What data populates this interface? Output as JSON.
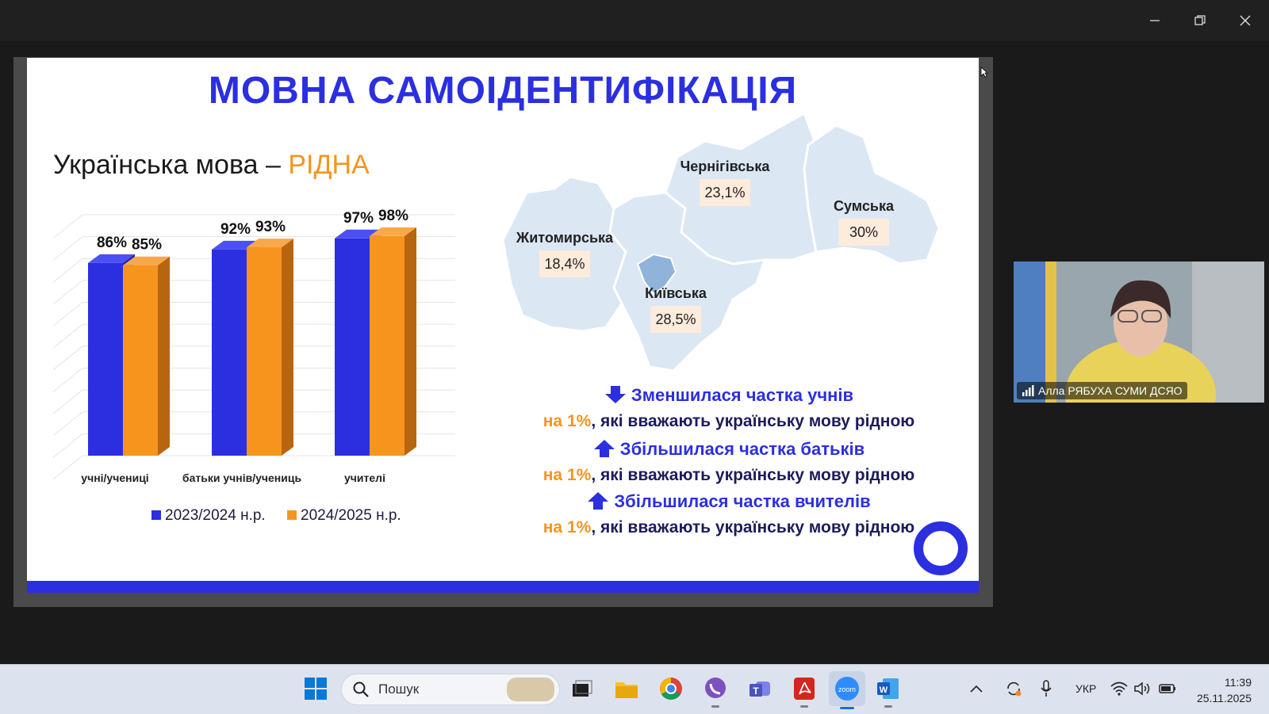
{
  "slide": {
    "title": "МОВНА САМОІДЕНТИФІКАЦІЯ",
    "subtitle_main": "Українська мова – ",
    "subtitle_highlight": "РІДНА",
    "colors": {
      "blue": "#2b2fe0",
      "orange": "#f7941d",
      "map": "#dbe7f3"
    }
  },
  "chart_data": {
    "type": "bar",
    "categories": [
      "учні/учениці",
      "батьки учнів/учениць",
      "учителі"
    ],
    "series": [
      {
        "name": "2023/2024 н.р.",
        "values": [
          86,
          92,
          97
        ],
        "labels": [
          "86%",
          "92%",
          "97%"
        ]
      },
      {
        "name": "2024/2025 н.р.",
        "values": [
          85,
          93,
          98
        ],
        "labels": [
          "85%",
          "93%",
          "98%"
        ]
      }
    ],
    "ylim": [
      0,
      100
    ],
    "legend": "bottom",
    "grid": true
  },
  "map": {
    "regions": [
      {
        "name": "Чернігівська",
        "value": "23,1%"
      },
      {
        "name": "Сумська",
        "value": "30%"
      },
      {
        "name": "Житомирська",
        "value": "18,4%"
      },
      {
        "name": "Київська",
        "value": "28,5%"
      }
    ]
  },
  "notes": [
    {
      "direction": "down",
      "headline": "Зменшилася частка учнів",
      "amount": "на 1%",
      "rest": ", які вважають українську мову рідною"
    },
    {
      "direction": "up",
      "headline": "Збільшилася частка батьків",
      "amount": "на 1%",
      "rest": ", які вважають українську мову рідною"
    },
    {
      "direction": "up",
      "headline": "Збільшилася частка вчителів",
      "amount": "на 1%",
      "rest": ", які вважають українську мову рідною"
    }
  ],
  "participant": {
    "name": "Алла РЯБУХА СУМИ ДСЯО"
  },
  "taskbar": {
    "search_placeholder": "Пошук",
    "language": "УКР",
    "time": "11:39",
    "date": "25.11.2025",
    "apps": [
      "start-icon",
      "file-explorer-icon",
      "chrome-icon",
      "viber-icon",
      "teams-icon",
      "acrobat-icon",
      "zoom-icon",
      "word-icon"
    ]
  }
}
